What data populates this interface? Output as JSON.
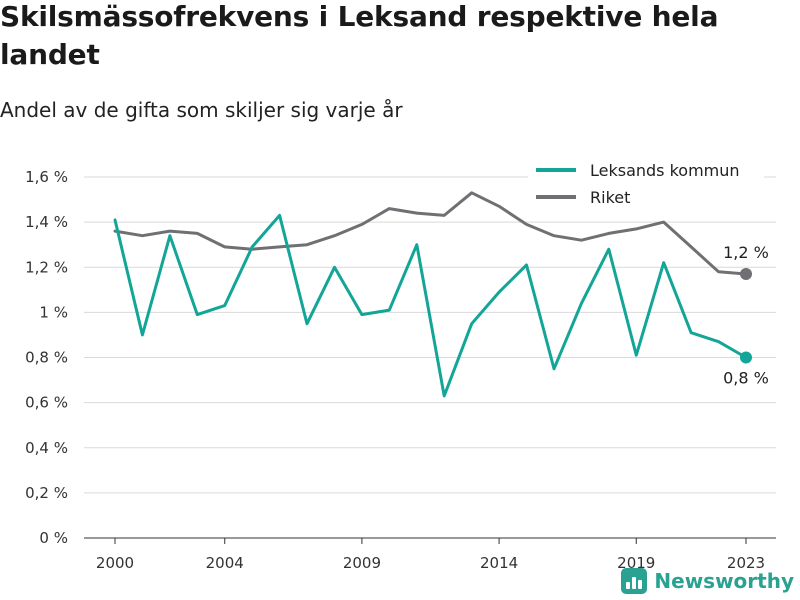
{
  "header": {
    "title": "Skilsmässofrekvens i Leksand respektive hela landet",
    "subtitle": "Andel av de gifta som skiljer sig varje år"
  },
  "brand": {
    "name": "Newsworthy",
    "icon": "bar-chart-logo-icon"
  },
  "colors": {
    "leksand": "#13a597",
    "riket": "#707074",
    "grid": "#d9d9d9",
    "brand": "#2aa191"
  },
  "chart_data": {
    "type": "line",
    "x": [
      2000,
      2001,
      2002,
      2003,
      2004,
      2005,
      2006,
      2007,
      2008,
      2009,
      2010,
      2011,
      2012,
      2013,
      2014,
      2015,
      2016,
      2017,
      2018,
      2019,
      2020,
      2021,
      2022,
      2023
    ],
    "x_ticks": [
      2000,
      2004,
      2009,
      2014,
      2019,
      2023
    ],
    "x_tick_labels": [
      "2000",
      "2004",
      "2009",
      "2014",
      "2019",
      "2023"
    ],
    "y_ticks": [
      0,
      0.2,
      0.4,
      0.6,
      0.8,
      1.0,
      1.2,
      1.4,
      1.6
    ],
    "y_tick_labels": [
      "0 %",
      "0,2 %",
      "0,4 %",
      "0,6 %",
      "0,8 %",
      "1 %",
      "1,2 %",
      "1,4 %",
      "1,6 %"
    ],
    "ylim": [
      0,
      1.6
    ],
    "grid": true,
    "legend_position": "top-right",
    "series": [
      {
        "name": "Leksands kommun",
        "color": "#13a597",
        "values": [
          1.41,
          0.9,
          1.34,
          0.99,
          1.03,
          1.29,
          1.43,
          0.95,
          1.2,
          0.99,
          1.01,
          1.3,
          0.63,
          0.95,
          1.09,
          1.21,
          0.75,
          1.04,
          1.28,
          0.81,
          1.22,
          0.91,
          0.87,
          0.8
        ],
        "end_label": "0,8 %"
      },
      {
        "name": "Riket",
        "color": "#707074",
        "values": [
          1.36,
          1.34,
          1.36,
          1.35,
          1.29,
          1.28,
          1.29,
          1.3,
          1.34,
          1.39,
          1.46,
          1.44,
          1.43,
          1.53,
          1.47,
          1.39,
          1.34,
          1.32,
          1.35,
          1.37,
          1.4,
          1.29,
          1.18,
          1.17
        ],
        "end_label": "1,2 %"
      }
    ]
  }
}
